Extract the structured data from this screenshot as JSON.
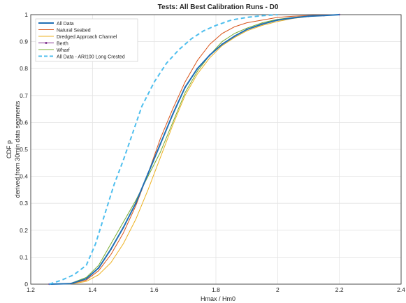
{
  "chart_data": {
    "type": "line",
    "title": "Tests: All Best Calibration Runs - D0",
    "xlabel": "Hmax / Hm0",
    "ylabel_lines": [
      "CDF p",
      "derived from 30min data segments"
    ],
    "xlim": [
      1.2,
      2.4
    ],
    "ylim": [
      0,
      1
    ],
    "xticks": [
      "1.2",
      "1.4",
      "1.6",
      "1.8",
      "2",
      "2.2",
      "2.4"
    ],
    "yticks": [
      "0",
      "0.1",
      "0.2",
      "0.3",
      "0.4",
      "0.5",
      "0.6",
      "0.7",
      "0.8",
      "0.9",
      "1"
    ],
    "grid": true,
    "legend_position": "top-left",
    "series": [
      {
        "name": "All Data",
        "color": "#1f6fb5",
        "dash": "solid",
        "width": 2,
        "x": [
          1.26,
          1.33,
          1.38,
          1.42,
          1.46,
          1.5,
          1.54,
          1.58,
          1.62,
          1.66,
          1.7,
          1.74,
          1.78,
          1.82,
          1.86,
          1.9,
          1.95,
          2.0,
          2.05,
          2.1,
          2.15,
          2.2
        ],
        "y": [
          0.0,
          0.002,
          0.02,
          0.06,
          0.13,
          0.21,
          0.3,
          0.41,
          0.52,
          0.63,
          0.73,
          0.8,
          0.85,
          0.89,
          0.92,
          0.945,
          0.965,
          0.98,
          0.988,
          0.994,
          0.997,
          1.0
        ]
      },
      {
        "name": "Natural Seabed",
        "color": "#d95319",
        "dash": "solid",
        "width": 1,
        "x": [
          1.26,
          1.33,
          1.38,
          1.42,
          1.46,
          1.5,
          1.54,
          1.58,
          1.62,
          1.66,
          1.7,
          1.74,
          1.78,
          1.82,
          1.86,
          1.9,
          1.95,
          2.0,
          2.05,
          2.1,
          2.15,
          2.2
        ],
        "y": [
          0.0,
          0.002,
          0.015,
          0.05,
          0.11,
          0.19,
          0.29,
          0.41,
          0.54,
          0.65,
          0.75,
          0.83,
          0.89,
          0.93,
          0.955,
          0.97,
          0.98,
          0.99,
          0.994,
          0.997,
          0.999,
          1.0
        ]
      },
      {
        "name": "Dredged Approach Channel",
        "color": "#edb120",
        "dash": "solid",
        "width": 1,
        "x": [
          1.26,
          1.33,
          1.38,
          1.42,
          1.46,
          1.5,
          1.54,
          1.58,
          1.62,
          1.66,
          1.7,
          1.74,
          1.78,
          1.82,
          1.86,
          1.9,
          1.95,
          2.0,
          2.05,
          2.1,
          2.15,
          2.2
        ],
        "y": [
          0.0,
          0.001,
          0.01,
          0.035,
          0.08,
          0.15,
          0.24,
          0.35,
          0.47,
          0.59,
          0.7,
          0.78,
          0.84,
          0.885,
          0.915,
          0.94,
          0.96,
          0.975,
          0.986,
          0.993,
          0.997,
          1.0
        ]
      },
      {
        "name": "Berth",
        "color": "#7e2f8e",
        "dash": "solid",
        "width": 1,
        "marker": "dot",
        "x": [
          1.26,
          1.33,
          1.38,
          1.42,
          1.46,
          1.5,
          1.54,
          1.58,
          1.62,
          1.66,
          1.7,
          1.74,
          1.78,
          1.82,
          1.86,
          1.9,
          1.95,
          2.0,
          2.05,
          2.1,
          2.15,
          2.2
        ],
        "y": [
          0.0,
          0.002,
          0.02,
          0.06,
          0.13,
          0.21,
          0.3,
          0.41,
          0.52,
          0.63,
          0.73,
          0.8,
          0.85,
          0.89,
          0.92,
          0.945,
          0.965,
          0.98,
          0.988,
          0.994,
          0.997,
          1.0
        ]
      },
      {
        "name": "Wharf",
        "color": "#77ac30",
        "dash": "solid",
        "width": 1,
        "x": [
          1.26,
          1.33,
          1.38,
          1.42,
          1.46,
          1.5,
          1.54,
          1.58,
          1.62,
          1.66,
          1.7,
          1.74,
          1.78,
          1.82,
          1.86,
          1.9,
          1.95,
          2.0,
          2.05,
          2.1,
          2.15,
          2.2
        ],
        "y": [
          0.0,
          0.003,
          0.025,
          0.07,
          0.15,
          0.23,
          0.31,
          0.4,
          0.49,
          0.6,
          0.71,
          0.79,
          0.85,
          0.9,
          0.93,
          0.95,
          0.97,
          0.983,
          0.99,
          0.995,
          0.998,
          1.0
        ]
      },
      {
        "name": "All Data - ARI100 Long Crested",
        "color": "#4dbeee",
        "dash": "dashed",
        "width": 2,
        "x": [
          1.26,
          1.3,
          1.34,
          1.38,
          1.41,
          1.44,
          1.47,
          1.5,
          1.53,
          1.56,
          1.6,
          1.64,
          1.68,
          1.72,
          1.76,
          1.8,
          1.85,
          1.9,
          1.95,
          2.0
        ],
        "y": [
          0.0,
          0.015,
          0.035,
          0.07,
          0.15,
          0.26,
          0.37,
          0.46,
          0.56,
          0.66,
          0.75,
          0.82,
          0.87,
          0.91,
          0.94,
          0.96,
          0.98,
          0.99,
          0.996,
          1.0
        ]
      }
    ]
  }
}
